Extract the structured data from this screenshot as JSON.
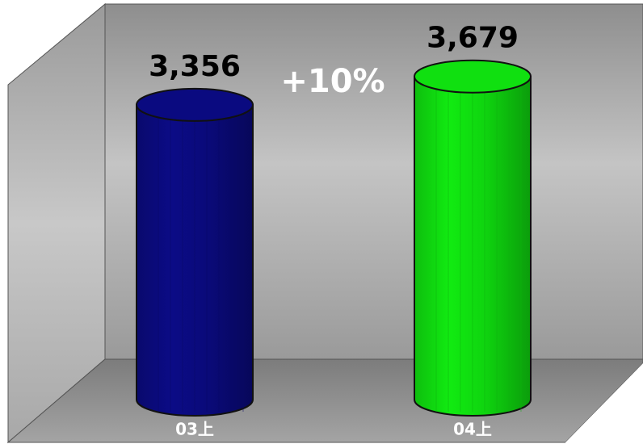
{
  "chart_data": {
    "type": "cylinder",
    "categories": [
      "03上",
      "04上"
    ],
    "values": [
      3356,
      3679
    ],
    "value_labels": [
      "3,356",
      "3,679"
    ],
    "colors": [
      "#0a0a80",
      "#10e010"
    ],
    "annotations": [
      "+10%"
    ]
  }
}
